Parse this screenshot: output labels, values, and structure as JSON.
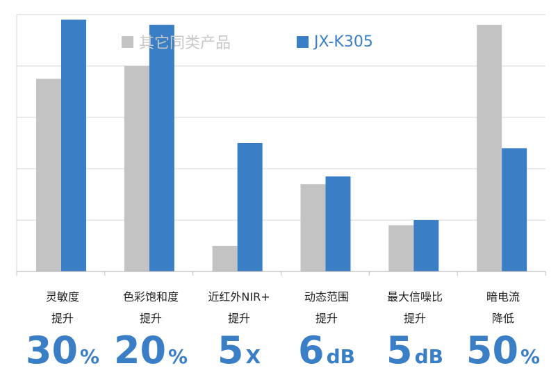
{
  "chart_data": {
    "type": "bar",
    "title": "",
    "xlabel": "",
    "ylabel": "",
    "ylim": [
      0,
      100
    ],
    "grid": true,
    "legend_position": "top",
    "categories": [
      {
        "line1": "灵敏度",
        "line2": "提升"
      },
      {
        "line1": "色彩饱和度",
        "line2": "提升"
      },
      {
        "line1": "近红外NIR+",
        "line2": "提升"
      },
      {
        "line1": "动态范围",
        "line2": "提升"
      },
      {
        "line1": "最大信噪比",
        "line2": "提升"
      },
      {
        "line1": "暗电流",
        "line2": "降低"
      }
    ],
    "series": [
      {
        "name": "其它同类产品",
        "color": "#c3c3c3",
        "values": [
          75,
          80,
          10,
          34,
          18,
          96
        ]
      },
      {
        "name": "JX-K305",
        "color": "#3a7fc6",
        "values": [
          98,
          96,
          50,
          37,
          20,
          48
        ]
      }
    ],
    "annotations": [
      {
        "value": "30",
        "unit": "%"
      },
      {
        "value": "20",
        "unit": "%"
      },
      {
        "value": "5",
        "unit": "X"
      },
      {
        "value": "6",
        "unit": "dB"
      },
      {
        "value": "5",
        "unit": "dB"
      },
      {
        "value": "50",
        "unit": "%"
      }
    ]
  }
}
